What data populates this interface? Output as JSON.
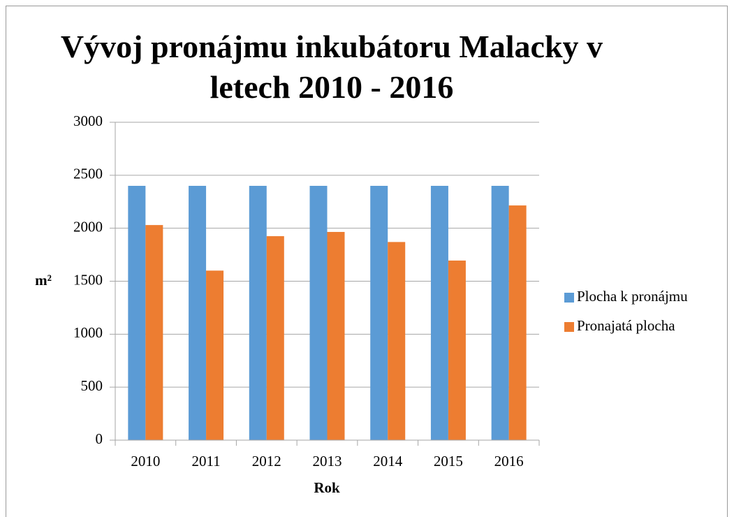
{
  "chart_data": {
    "type": "bar",
    "title": "Vývoj pronájmu inkubátoru Malacky v letech 2010 - 2016",
    "x_label": "Rok",
    "y_label": "m²",
    "categories": [
      "2010",
      "2011",
      "2012",
      "2013",
      "2014",
      "2015",
      "2016"
    ],
    "series": [
      {
        "name": "Plocha k pronájmu",
        "color": "#5b9bd5",
        "values": [
          2400,
          2400,
          2400,
          2400,
          2400,
          2400,
          2400
        ]
      },
      {
        "name": "Pronajatá plocha",
        "color": "#ed7d31",
        "values": [
          2030,
          1600,
          1925,
          1965,
          1870,
          1695,
          2215
        ]
      }
    ],
    "ylim": [
      0,
      3000
    ],
    "yticks": [
      0,
      500,
      1000,
      1500,
      2000,
      2500,
      3000
    ],
    "grid": true,
    "legend": "right"
  }
}
